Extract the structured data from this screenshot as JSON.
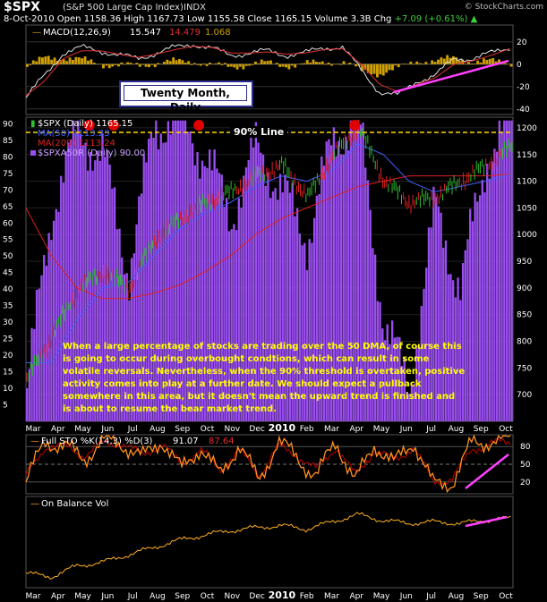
{
  "header": {
    "symbol": "$SPX",
    "name": "(S&P 500 Large Cap Index)",
    "exchange": "INDX",
    "brand": "© StockCharts.com",
    "date": "8-Oct-2010",
    "open_label": "Open",
    "open": "1158.36",
    "high_label": "High",
    "high": "1167.73",
    "low_label": "Low",
    "low": "1155.58",
    "close_label": "Close",
    "close": "1165.15",
    "volume_label": "Volume",
    "volume": "3.3B",
    "chg_label": "Chg",
    "chg": "+7.09 (+0.61%)",
    "chg_arrow": "▲"
  },
  "macd": {
    "legend_name": "MACD(12,26,9)",
    "v1": "15.547",
    "v2": "14.479",
    "v3": "1.068",
    "ticks": [
      20,
      0,
      -20,
      -40
    ],
    "ylim": [
      -45,
      35
    ],
    "colors": {
      "macd": "#e0e0e0",
      "signal": "#e03030",
      "hist": "#d0a000",
      "trend": "#ff40ff"
    }
  },
  "title_box": "Twenty Month, Daily",
  "main": {
    "legend_spx": "$SPX (Daily) 1165.15",
    "legend_ma50": "MA(50) 1113.23",
    "legend_ma200": "MA(200) 1113.24",
    "legend_a50r": "$SPXA50R (Daily) 90.00",
    "line90_label": "90% Line",
    "left_ticks": [
      90,
      85,
      80,
      75,
      70,
      65,
      60,
      55,
      50,
      45,
      40,
      35,
      30,
      25,
      20,
      15,
      10,
      5
    ],
    "right_ticks": [
      1200,
      1150,
      1100,
      1050,
      1000,
      950,
      900,
      850,
      800,
      750,
      700
    ],
    "colors": {
      "bars": "#9a4ef0",
      "up": "#2ec02e",
      "down": "#e02020",
      "ma50": "#4060ff",
      "ma200": "#e02020",
      "line90": "#ffd800",
      "marker": "#e00000"
    }
  },
  "annotation": "When a large percentage of stocks are trading over the 50 DMA, of course this is going to occur during overbought condtions, which can result in some volatile reversals. Nevertheless, when the 90% threshold is overtaken, positive activity comes into play at a further date. We should expect a pullback somewhere in this area, but it doesn't mean the upward trend is finished and is about to resume the bear market trend.",
  "x_axis_labels": [
    "Mar",
    "Apr",
    "May",
    "Jun",
    "Jul",
    "Aug",
    "Sep",
    "Oct",
    "Nov",
    "Dec",
    "2010",
    "Feb",
    "Mar",
    "Apr",
    "May",
    "Jun",
    "Jul",
    "Aug",
    "Sep",
    "Oct"
  ],
  "sto": {
    "legend_name": "Full STO %K(14,3) %D(3)",
    "k": "91.07",
    "d": "87.64",
    "ticks": [
      80,
      50,
      20
    ],
    "colors": {
      "k": "#ff9020",
      "d": "#c00000"
    }
  },
  "obv": {
    "legend_name": "On Balance Vol",
    "color": "#ffb020"
  },
  "chart_data": [
    {
      "type": "line",
      "title": "MACD(12,26,9)",
      "ylim": [
        -45,
        35
      ],
      "series": [
        {
          "name": "MACD",
          "values": [
            -30,
            -10,
            10,
            15,
            12,
            8,
            5,
            10,
            15,
            18,
            14,
            8,
            10,
            12,
            8,
            10,
            15,
            15,
            -5,
            -25,
            -28,
            -15,
            -10,
            5,
            5,
            10,
            15
          ]
        },
        {
          "name": "Signal",
          "values": [
            -28,
            -15,
            5,
            12,
            12,
            9,
            6,
            9,
            13,
            16,
            15,
            10,
            10,
            11,
            9,
            10,
            13,
            14,
            0,
            -18,
            -25,
            -18,
            -12,
            0,
            3,
            8,
            14
          ]
        }
      ]
    },
    {
      "type": "bar",
      "title": "$SPX (Daily) / $SPXA50R (Daily)",
      "x": [
        "Mar",
        "Apr",
        "May",
        "Jun",
        "Jul",
        "Aug",
        "Sep",
        "Oct",
        "Nov",
        "Dec",
        "2010",
        "Feb",
        "Mar",
        "Apr",
        "May",
        "Jun",
        "Jul",
        "Aug",
        "Sep",
        "Oct"
      ],
      "ylim": [
        0,
        92
      ],
      "series": [
        {
          "name": "$SPXA50R (Daily)",
          "values": [
            10,
            65,
            88,
            80,
            45,
            90,
            92,
            80,
            62,
            83,
            70,
            55,
            85,
            92,
            30,
            10,
            65,
            40,
            80,
            90
          ]
        },
        {
          "name": "$SPX (Daily)",
          "values": [
            730,
            810,
            900,
            930,
            900,
            990,
            1030,
            1060,
            1080,
            1110,
            1130,
            1070,
            1150,
            1200,
            1100,
            1060,
            1070,
            1100,
            1130,
            1165
          ]
        },
        {
          "name": "MA(50)",
          "values": [
            760,
            760,
            840,
            900,
            910,
            960,
            1010,
            1040,
            1060,
            1090,
            1110,
            1100,
            1120,
            1170,
            1150,
            1100,
            1080,
            1090,
            1100,
            1113.23
          ]
        },
        {
          "name": "MA(200)",
          "values": [
            1050,
            960,
            900,
            880,
            880,
            890,
            905,
            930,
            960,
            1000,
            1030,
            1050,
            1070,
            1090,
            1100,
            1110,
            1110,
            1110,
            1110,
            1113.24
          ]
        }
      ],
      "y2lim": [
        650,
        1220
      ]
    },
    {
      "type": "line",
      "title": "Full STO %K(14,3) %D(3)",
      "ylim": [
        0,
        100
      ],
      "series": [
        {
          "name": "%K",
          "values": [
            20,
            90,
            80,
            60,
            90,
            85,
            60,
            92,
            40,
            80,
            30,
            85,
            20,
            90,
            60,
            30,
            90,
            20,
            85,
            50,
            90,
            15,
            20,
            85,
            90,
            91.07
          ]
        },
        {
          "name": "%D",
          "values": [
            30,
            80,
            80,
            65,
            85,
            85,
            65,
            85,
            50,
            75,
            40,
            75,
            30,
            80,
            65,
            40,
            80,
            30,
            75,
            55,
            80,
            20,
            25,
            75,
            85,
            87.64
          ]
        }
      ]
    },
    {
      "type": "line",
      "title": "On Balance Vol",
      "series": [
        {
          "name": "OBV",
          "values": [
            10,
            5,
            20,
            25,
            35,
            45,
            55,
            62,
            68,
            72,
            75,
            70,
            80,
            90,
            82,
            78,
            80,
            78,
            82,
            85
          ]
        }
      ]
    }
  ]
}
